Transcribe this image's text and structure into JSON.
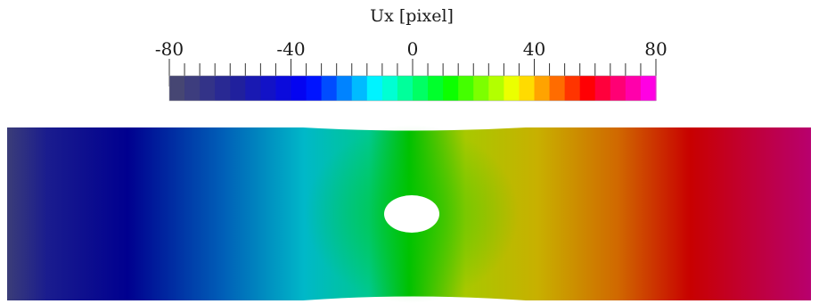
{
  "colorbar": {
    "title": "Ux [pixel]",
    "range": [
      -80,
      80
    ],
    "major_ticks": [
      -80,
      -40,
      0,
      40,
      80
    ],
    "minor_tick_step": 5,
    "labels": [
      "-80",
      "-40",
      "0",
      "40",
      "80"
    ],
    "colors": [
      "#4b4b6e",
      "#1f1f9e",
      "#0000ff",
      "#00ffff",
      "#00ff00",
      "#ffff00",
      "#ff0000",
      "#ff00ff"
    ],
    "discrete_steps": 32
  },
  "field": {
    "quantity": "Ux",
    "colors": [
      "#3a3a78",
      "#00008f",
      "#0078c8",
      "#00c8c8",
      "#00c000",
      "#c8c800",
      "#d08000",
      "#c80000",
      "#b8006e"
    ],
    "hole": "white ellipse at center of plate"
  }
}
